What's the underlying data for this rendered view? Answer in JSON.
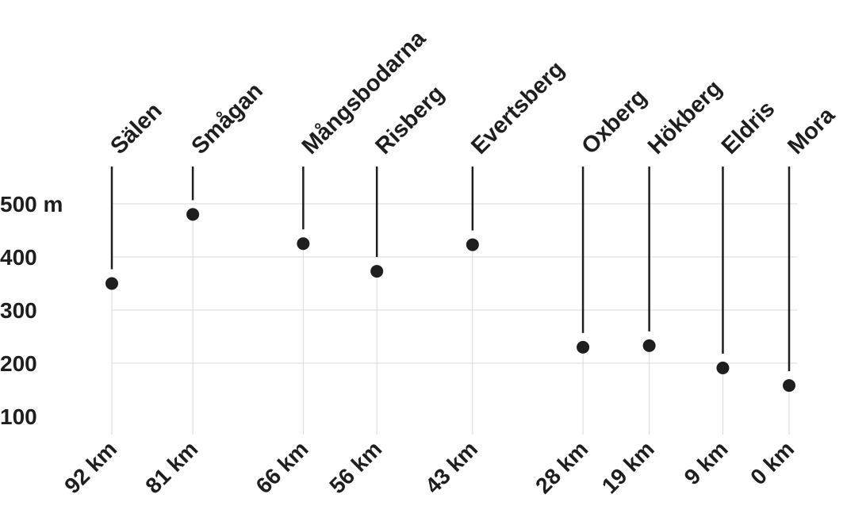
{
  "chart_data": {
    "type": "scatter",
    "title": "",
    "xlabel": "",
    "ylabel": "",
    "x_reversed": true,
    "xlim": [
      92,
      0
    ],
    "ylim": [
      100,
      500
    ],
    "y_ticks": [
      100,
      200,
      300,
      400,
      500
    ],
    "y_tick_labels": [
      "100",
      "200",
      "300",
      "400",
      "500 m"
    ],
    "grid": true,
    "colors": {
      "marks": "#1e1e1e",
      "grid": "#d9d9d9"
    },
    "points": [
      {
        "name": "Sälen",
        "x": 92,
        "x_label": "92 km",
        "y": 350
      },
      {
        "name": "Smågan",
        "x": 81,
        "x_label": "81 km",
        "y": 480
      },
      {
        "name": "Mångsbodarna",
        "x": 66,
        "x_label": "66 km",
        "y": 425
      },
      {
        "name": "Risberg",
        "x": 56,
        "x_label": "56 km",
        "y": 373
      },
      {
        "name": "Evertsberg",
        "x": 43,
        "x_label": "43 km",
        "y": 423
      },
      {
        "name": "Oxberg",
        "x": 28,
        "x_label": "28 km",
        "y": 230
      },
      {
        "name": "Hökberg",
        "x": 19,
        "x_label": "19 km",
        "y": 233
      },
      {
        "name": "Eldris",
        "x": 9,
        "x_label": "9 km",
        "y": 191
      },
      {
        "name": "Mora",
        "x": 0,
        "x_label": "0 km",
        "y": 158
      }
    ]
  }
}
